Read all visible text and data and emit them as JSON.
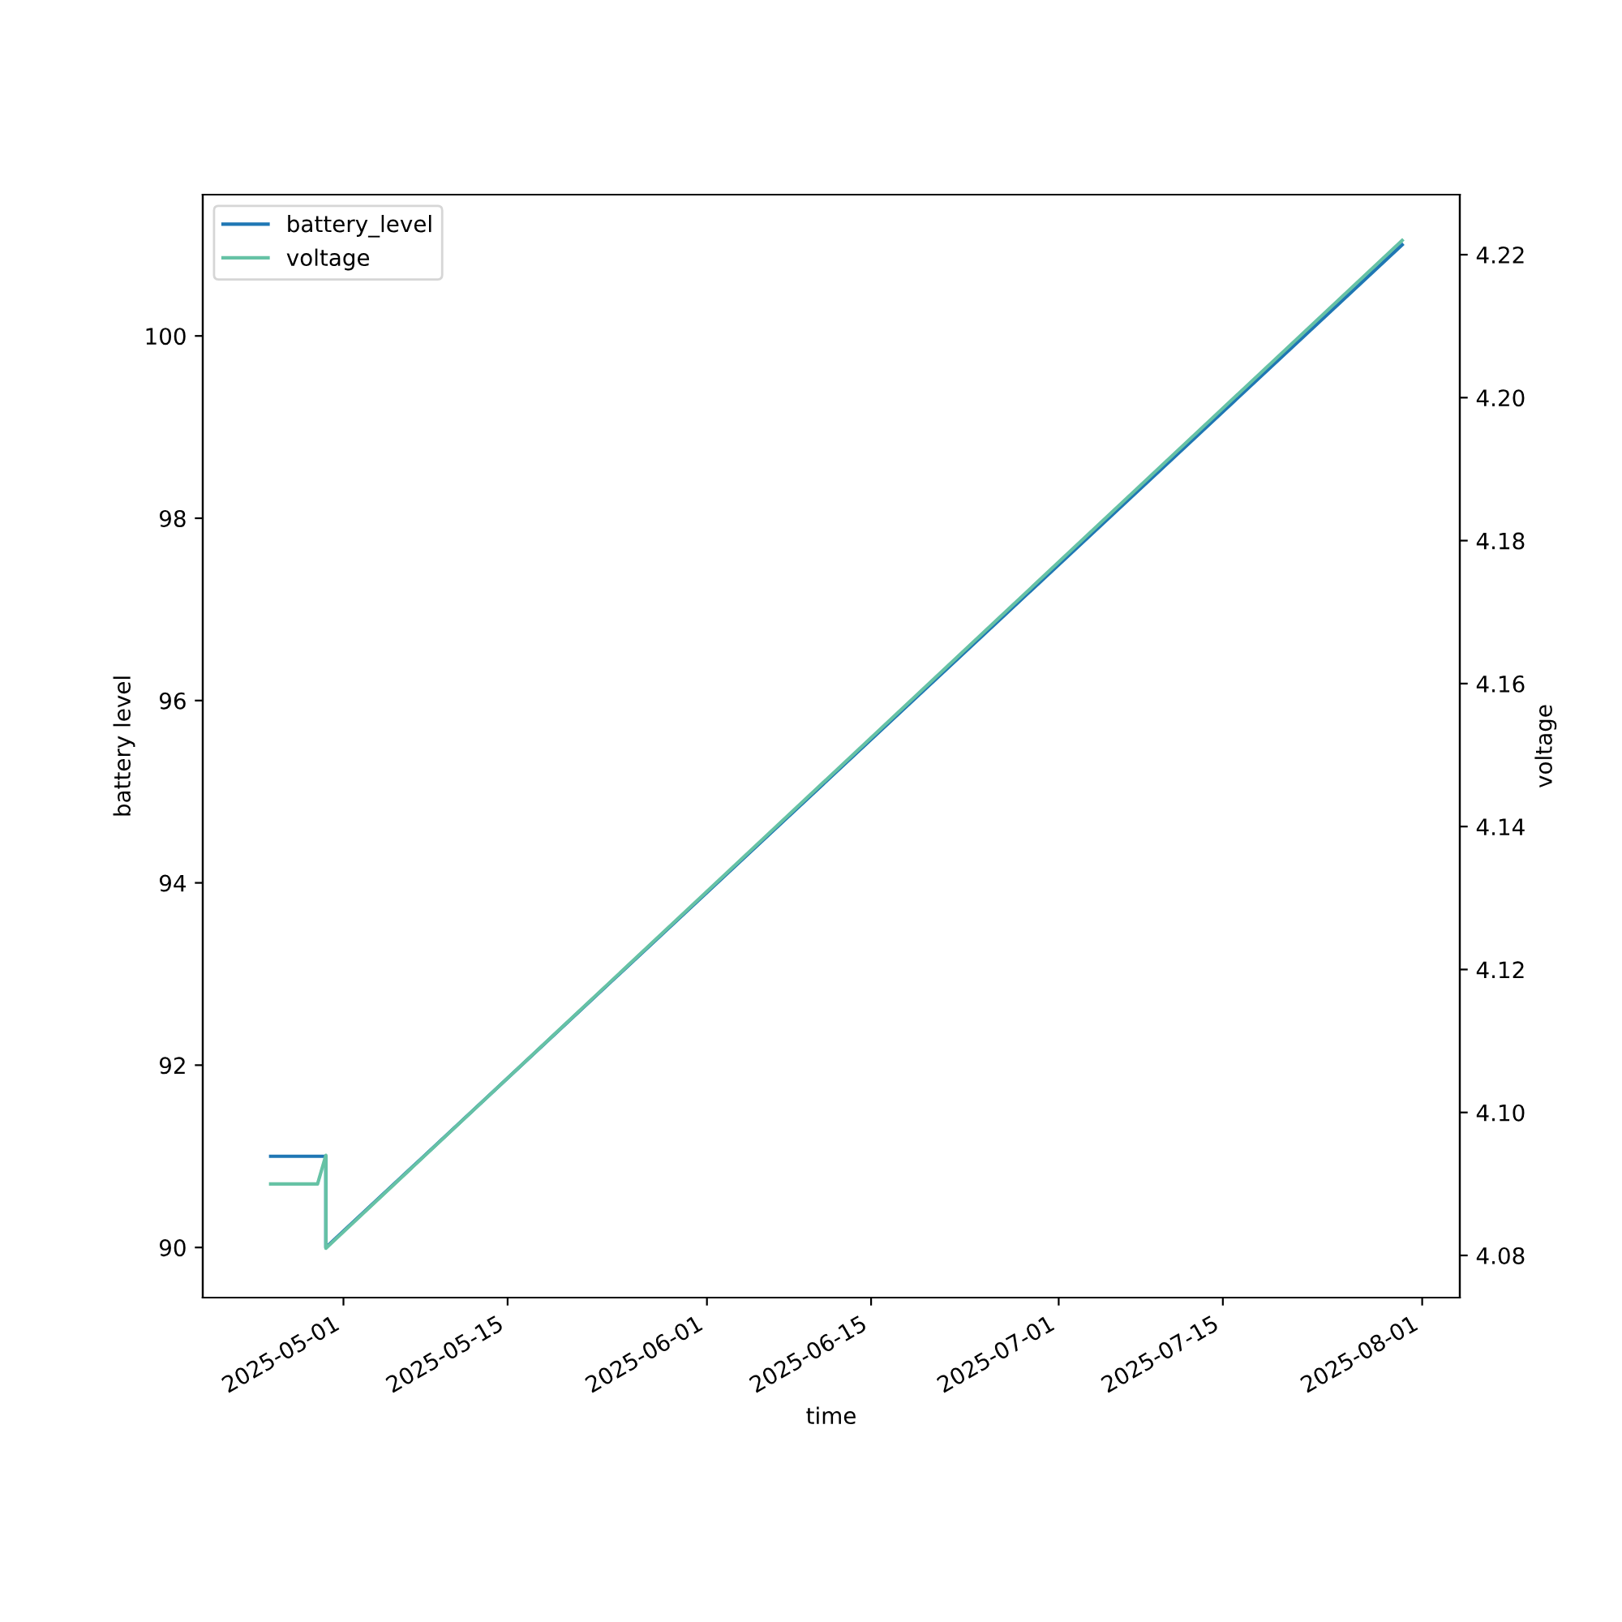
{
  "chart_data": {
    "type": "line",
    "xlabel": "time",
    "ylabel": "battery level",
    "y2label": "voltage",
    "xlim": [
      "2025-04-19T00:00",
      "2025-08-04T05:00"
    ],
    "xticks": [
      "2025-05-01",
      "2025-05-15",
      "2025-06-01",
      "2025-06-15",
      "2025-07-01",
      "2025-07-15",
      "2025-08-01"
    ],
    "ylim": [
      89.45,
      101.55
    ],
    "yticks": [
      90,
      92,
      94,
      96,
      98,
      100
    ],
    "y2lim": [
      4.0741,
      4.2284
    ],
    "y2ticks": [
      4.08,
      {
        "value": 4.1,
        "label": "4.10"
      },
      4.12,
      4.14,
      4.16,
      4.18,
      {
        "value": 4.2,
        "label": "4.20"
      },
      4.22
    ],
    "grid": false,
    "legend": "top left",
    "line_style": "solid",
    "marker": "none",
    "series": [
      {
        "name": "battery_level",
        "color": "#1f77b4",
        "x": [
          "2025-04-24T19:00",
          "2025-04-29T12:00",
          "2025-04-29T12:00",
          "2025-07-30T07:00"
        ],
        "values": [
          91,
          91,
          90,
          101
        ]
      },
      {
        "name": "voltage",
        "color": "#66c2a5",
        "axis": "y2",
        "x": [
          "2025-04-24T19:00",
          "2025-04-28T19:00",
          "2025-04-29T12:00",
          "2025-04-29T12:00",
          "2025-07-30T07:00"
        ],
        "values": [
          4.09,
          4.09,
          4.094,
          4.081,
          4.222
        ]
      }
    ]
  }
}
